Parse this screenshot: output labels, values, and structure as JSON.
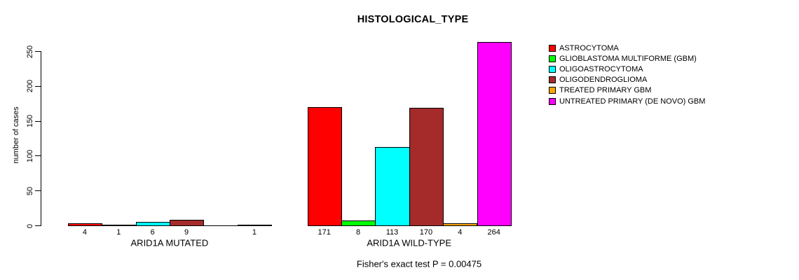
{
  "chart_data": {
    "type": "bar",
    "title": "HISTOLOGICAL_TYPE",
    "ylabel": "number of cases",
    "xlabel": "",
    "ylim": [
      0,
      250
    ],
    "yticks": [
      0,
      50,
      100,
      150,
      200,
      250
    ],
    "grid": false,
    "legend_position": "right",
    "series": [
      {
        "name": "ASTROCYTOMA",
        "color": "#FF0000"
      },
      {
        "name": "GLIOBLASTOMA MULTIFORME (GBM)",
        "color": "#00FF00"
      },
      {
        "name": "OLIGOASTROCYTOMA",
        "color": "#00FFFF"
      },
      {
        "name": "OLIGODENDROGLIOMA",
        "color": "#A52A2A"
      },
      {
        "name": "TREATED PRIMARY GBM",
        "color": "#FFA500"
      },
      {
        "name": "UNTREATED PRIMARY (DE NOVO) GBM",
        "color": "#FF00FF"
      }
    ],
    "groups": [
      {
        "label": "ARID1A MUTATED",
        "values": [
          4,
          1,
          6,
          9,
          0,
          1
        ]
      },
      {
        "label": "ARID1A WILD-TYPE",
        "values": [
          171,
          8,
          113,
          170,
          4,
          264
        ]
      }
    ],
    "bar_value_labels_shown_for_zero": false,
    "footnote": "Fisher's exact test P = 0.00475"
  }
}
